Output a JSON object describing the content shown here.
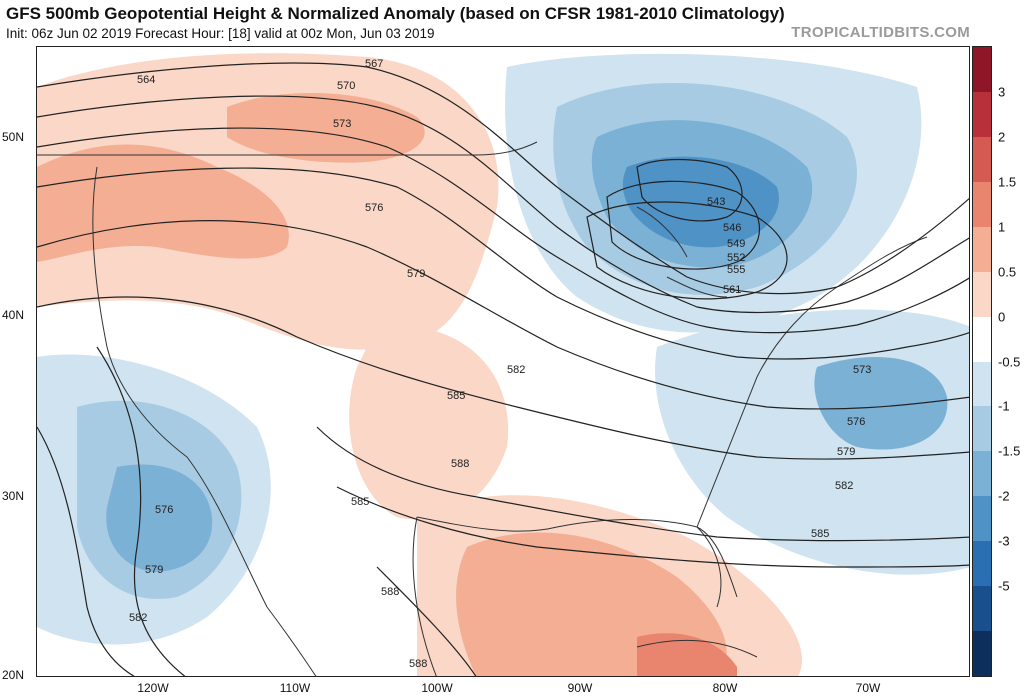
{
  "header": {
    "title": "GFS 500mb Geopotential Height & Normalized Anomaly (based on CFSR 1981-2010 Climatology)",
    "subtitle": "Init: 06z Jun 02 2019   Forecast Hour: [18]   valid at 00z Mon, Jun 03 2019",
    "credit": "TROPICALTIDBITS.COM"
  },
  "axes": {
    "latitudes": [
      {
        "label": "50N",
        "value": 50
      },
      {
        "label": "40N",
        "value": 40
      },
      {
        "label": "30N",
        "value": 30
      },
      {
        "label": "20N",
        "value": 20
      }
    ],
    "longitudes": [
      {
        "label": "120W",
        "value": -120
      },
      {
        "label": "110W",
        "value": -110
      },
      {
        "label": "100W",
        "value": -100
      },
      {
        "label": "90W",
        "value": -90
      },
      {
        "label": "80W",
        "value": -80
      },
      {
        "label": "70W",
        "value": -70
      }
    ]
  },
  "colorbar": {
    "labels": [
      "3",
      "2",
      "1.5",
      "1",
      "0.5",
      "0",
      "-0.5",
      "-1",
      "-1.5",
      "-2",
      "-3",
      "-5"
    ],
    "colors": [
      "#8e1626",
      "#b8303a",
      "#d45a52",
      "#e9856f",
      "#f4ae94",
      "#fad7c6",
      "#ffffff",
      "#cfe3f0",
      "#a7cbe3",
      "#7cb1d6",
      "#4f92c6",
      "#2a6fb2",
      "#184f8c",
      "#0d2f5c"
    ]
  },
  "contour_labels": [
    {
      "text": "564"
    },
    {
      "text": "567"
    },
    {
      "text": "570"
    },
    {
      "text": "573"
    },
    {
      "text": "576"
    },
    {
      "text": "579"
    },
    {
      "text": "582"
    },
    {
      "text": "585"
    },
    {
      "text": "588"
    },
    {
      "text": "543"
    },
    {
      "text": "546"
    },
    {
      "text": "549"
    },
    {
      "text": "552"
    },
    {
      "text": "555"
    },
    {
      "text": "561"
    }
  ]
}
